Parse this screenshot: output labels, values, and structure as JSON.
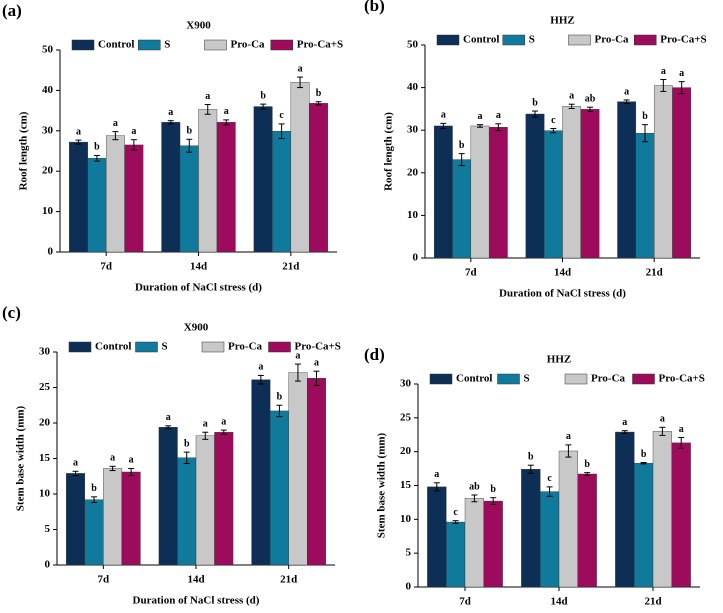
{
  "chart_data": [
    {
      "type": "bar",
      "panel": "(a)",
      "title": "X900",
      "xlabel": "Duration of NaCl stress (d)",
      "ylabel": "Roof length (cm)",
      "categories": [
        "7d",
        "14d",
        "21d"
      ],
      "ylim": [
        0,
        50
      ],
      "yticks": [
        0,
        10,
        20,
        30,
        40,
        50
      ],
      "grid": false,
      "legend": "top",
      "series": [
        {
          "name": "Control",
          "color": "#0d2f55",
          "values": [
            27.2,
            32.1,
            36.0
          ],
          "errors": [
            0.5,
            0.4,
            0.6
          ],
          "letters": [
            "a",
            "a",
            "b"
          ]
        },
        {
          "name": "S",
          "color": "#0f7a9c",
          "values": [
            23.2,
            26.3,
            29.9
          ],
          "errors": [
            0.7,
            1.6,
            1.8
          ],
          "letters": [
            "b",
            "b",
            "c"
          ]
        },
        {
          "name": "Pro-Ca",
          "color": "#c8c8c8",
          "values": [
            28.8,
            35.3,
            42.0
          ],
          "errors": [
            1.0,
            1.2,
            1.3
          ],
          "letters": [
            "a",
            "a",
            "a"
          ]
        },
        {
          "name": "Pro-Ca+S",
          "color": "#9c0b5c",
          "values": [
            26.5,
            32.1,
            36.8
          ],
          "errors": [
            1.3,
            0.6,
            0.4
          ],
          "letters": [
            "a",
            "a",
            "b"
          ]
        }
      ]
    },
    {
      "type": "bar",
      "panel": "(b)",
      "title": "HHZ",
      "xlabel": "Duration of NaCl stress (d)",
      "ylabel": "Roof length (cm)",
      "categories": [
        "7d",
        "14d",
        "21d"
      ],
      "ylim": [
        0,
        50
      ],
      "yticks": [
        0,
        10,
        20,
        30,
        40,
        50
      ],
      "grid": false,
      "legend": "top",
      "series": [
        {
          "name": "Control",
          "color": "#0d2f55",
          "values": [
            31.0,
            33.8,
            36.7
          ],
          "errors": [
            0.6,
            0.7,
            0.4
          ],
          "letters": [
            "a",
            "b",
            "a"
          ]
        },
        {
          "name": "S",
          "color": "#0f7a9c",
          "values": [
            23.1,
            29.9,
            29.3
          ],
          "errors": [
            1.4,
            0.5,
            2.0
          ],
          "letters": [
            "b",
            "c",
            "b"
          ]
        },
        {
          "name": "Pro-Ca",
          "color": "#c8c8c8",
          "values": [
            31.0,
            35.6,
            40.5
          ],
          "errors": [
            0.3,
            0.5,
            1.4
          ],
          "letters": [
            "a",
            "a",
            "a"
          ]
        },
        {
          "name": "Pro-Ca+S",
          "color": "#9c0b5c",
          "values": [
            30.7,
            34.9,
            40.0
          ],
          "errors": [
            0.8,
            0.5,
            1.4
          ],
          "letters": [
            "a",
            "ab",
            "a"
          ]
        }
      ]
    },
    {
      "type": "bar",
      "panel": "(c)",
      "title": "X900",
      "xlabel": "Duration of NaCl stress (d)",
      "ylabel": "Stem base width (mm)",
      "categories": [
        "7d",
        "14d",
        "21d"
      ],
      "ylim": [
        0,
        30
      ],
      "yticks": [
        0,
        5,
        10,
        15,
        20,
        25,
        30
      ],
      "grid": false,
      "legend": "top",
      "series": [
        {
          "name": "Control",
          "color": "#0d2f55",
          "values": [
            12.9,
            19.4,
            26.1
          ],
          "errors": [
            0.3,
            0.2,
            0.6
          ],
          "letters": [
            "a",
            "a",
            "a"
          ]
        },
        {
          "name": "S",
          "color": "#0f7a9c",
          "values": [
            9.2,
            15.1,
            21.7
          ],
          "errors": [
            0.4,
            0.8,
            0.8
          ],
          "letters": [
            "b",
            "b",
            "b"
          ]
        },
        {
          "name": "Pro-Ca",
          "color": "#c8c8c8",
          "values": [
            13.6,
            18.2,
            27.1
          ],
          "errors": [
            0.3,
            0.5,
            1.2
          ],
          "letters": [
            "a",
            "a",
            "a"
          ]
        },
        {
          "name": "Pro-Ca+S",
          "color": "#9c0b5c",
          "values": [
            13.1,
            18.7,
            26.3
          ],
          "errors": [
            0.5,
            0.3,
            1.0
          ],
          "letters": [
            "a",
            "a",
            "a"
          ]
        }
      ]
    },
    {
      "type": "bar",
      "panel": "(d)",
      "title": "HHZ",
      "xlabel": "Duration of NaCl stress (d)",
      "ylabel": "Stem base width (mm)",
      "categories": [
        "7d",
        "14d",
        "21d"
      ],
      "ylim": [
        0,
        30
      ],
      "yticks": [
        0,
        5,
        10,
        15,
        20,
        25,
        30
      ],
      "grid": false,
      "legend": "top",
      "series": [
        {
          "name": "Control",
          "color": "#0d2f55",
          "values": [
            14.8,
            17.4,
            22.9
          ],
          "errors": [
            0.6,
            0.6,
            0.2
          ],
          "letters": [
            "a",
            "b",
            "a"
          ]
        },
        {
          "name": "S",
          "color": "#0f7a9c",
          "values": [
            9.6,
            14.1,
            18.3
          ],
          "errors": [
            0.2,
            0.7,
            0.1
          ],
          "letters": [
            "c",
            "c",
            "b"
          ]
        },
        {
          "name": "Pro-Ca",
          "color": "#c8c8c8",
          "values": [
            13.1,
            20.1,
            23.0
          ],
          "errors": [
            0.5,
            0.9,
            0.6
          ],
          "letters": [
            "ab",
            "a",
            "a"
          ]
        },
        {
          "name": "Pro-Ca+S",
          "color": "#9c0b5c",
          "values": [
            12.7,
            16.7,
            21.3
          ],
          "errors": [
            0.5,
            0.2,
            0.8
          ],
          "letters": [
            "b",
            "b",
            "a"
          ]
        }
      ]
    }
  ]
}
